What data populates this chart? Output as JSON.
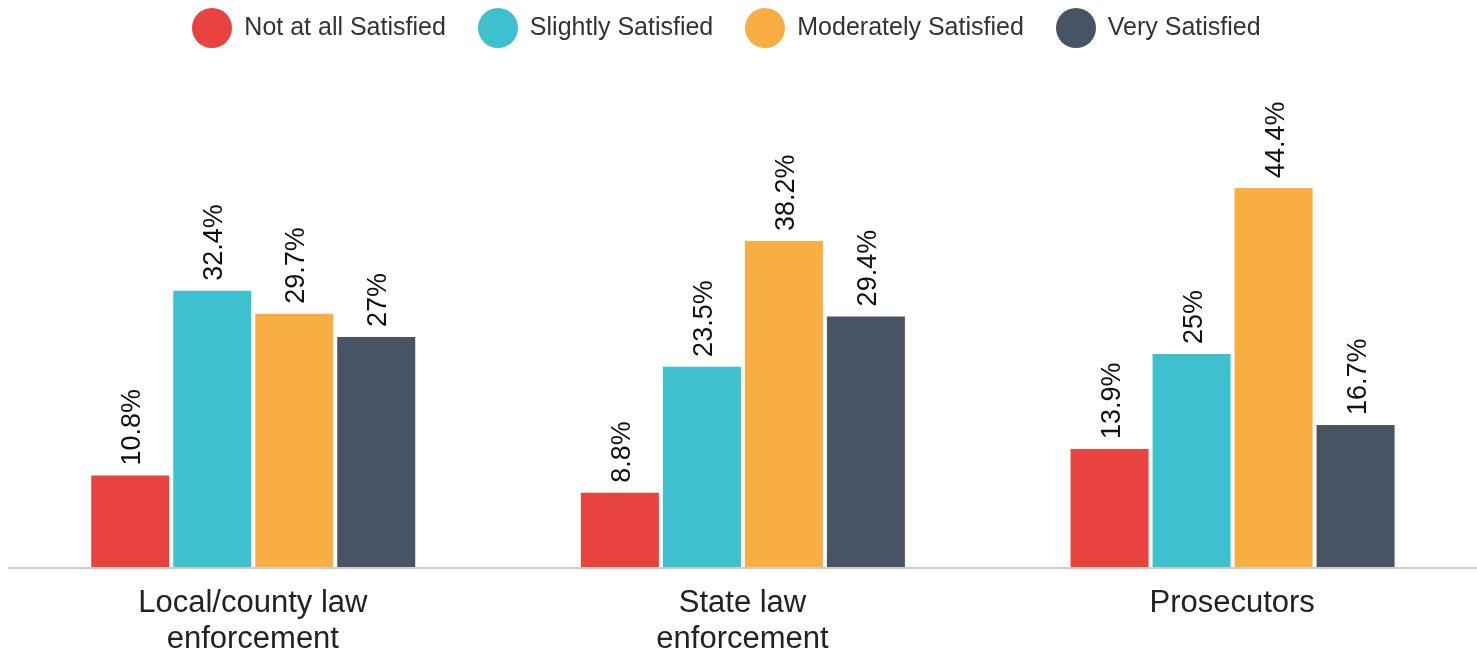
{
  "chart_data": {
    "type": "bar",
    "categories": [
      "Local/county law enforcement",
      "State law enforcement",
      "Prosecutors"
    ],
    "series": [
      {
        "name": "Not at all Satisfied",
        "color": "#e8433f",
        "values": [
          10.8,
          8.8,
          13.9
        ],
        "value_labels": [
          "10.8%",
          "8.8%",
          "13.9%"
        ]
      },
      {
        "name": "Slightly Satisfied",
        "color": "#3ec0cf",
        "values": [
          32.4,
          23.5,
          25
        ],
        "value_labels": [
          "32.4%",
          "23.5%",
          "25%"
        ]
      },
      {
        "name": "Moderately Satisfied",
        "color": "#f9ae44",
        "values": [
          29.7,
          38.2,
          44.4
        ],
        "value_labels": [
          "29.7%",
          "38.2%",
          "44.4%"
        ]
      },
      {
        "name": "Very Satisfied",
        "color": "#485464",
        "values": [
          27,
          29.4,
          16.7
        ],
        "value_labels": [
          "27%",
          "29.4%",
          "16.7%"
        ]
      }
    ],
    "legend": "top",
    "grid": false
  }
}
